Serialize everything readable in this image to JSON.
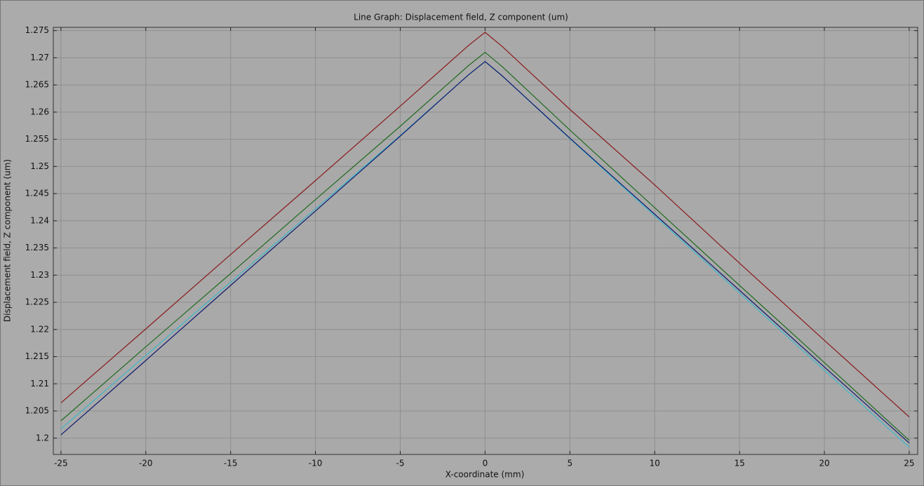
{
  "chart_data": {
    "type": "line",
    "title": "Line Graph: Displacement field, Z component (um)",
    "x_label": "X-coordinate (mm)",
    "y_label": "Displacement field, Z component (um)",
    "x": [
      -25,
      -20,
      -15,
      -10,
      -5,
      -1,
      0,
      1,
      5,
      10,
      15,
      20,
      25
    ],
    "series": [
      {
        "color": "#8b1a1a",
        "values": [
          1.2065,
          1.2201,
          1.2338,
          1.2474,
          1.2611,
          1.2722,
          1.2747,
          1.2721,
          1.2605,
          1.2466,
          1.2322,
          1.218,
          1.2039
        ]
      },
      {
        "color": "#1f6b1f",
        "values": [
          1.2032,
          1.2168,
          1.2303,
          1.2439,
          1.2574,
          1.2685,
          1.271,
          1.2684,
          1.2567,
          1.2424,
          1.2281,
          1.2139,
          1.1996
        ]
      },
      {
        "color": "#3fb8c8",
        "values": [
          1.2017,
          1.2152,
          1.2287,
          1.2422,
          1.2557,
          1.2668,
          1.2693,
          1.2667,
          1.2551,
          1.2409,
          1.2267,
          1.2125,
          1.1983
        ]
      },
      {
        "color": "#101a6e",
        "values": [
          1.2006,
          1.2143,
          1.2281,
          1.2418,
          1.2556,
          1.2668,
          1.2693,
          1.2667,
          1.2552,
          1.2412,
          1.2272,
          1.2131,
          1.1991
        ]
      }
    ],
    "xlim": [
      -25.45,
      25.5
    ],
    "ylim": [
      1.197,
      1.2756
    ],
    "xticks": [
      -25,
      -20,
      -15,
      -10,
      -5,
      0,
      5,
      10,
      15,
      20,
      25
    ],
    "yticks": [
      1.2,
      1.205,
      1.21,
      1.215,
      1.22,
      1.225,
      1.23,
      1.235,
      1.24,
      1.245,
      1.25,
      1.255,
      1.26,
      1.265,
      1.27,
      1.275
    ],
    "grid": true
  }
}
